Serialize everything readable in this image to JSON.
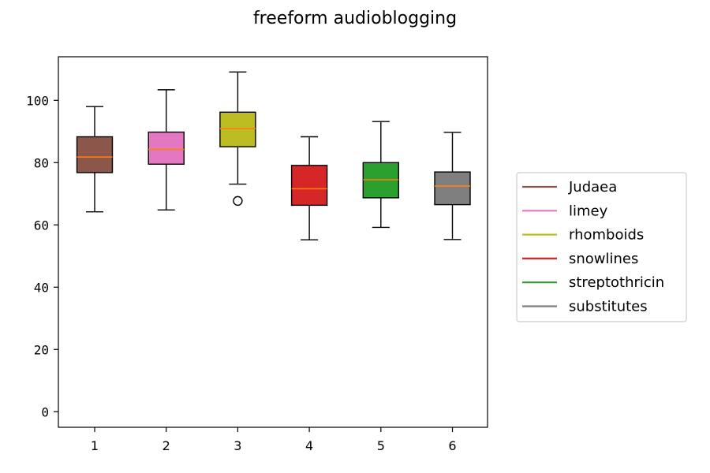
{
  "chart_data": {
    "type": "box",
    "title": "freeform audioblogging",
    "xlabel": "",
    "ylabel": "",
    "ylim": [
      -5,
      114
    ],
    "yticks": [
      0,
      20,
      40,
      60,
      80,
      100
    ],
    "grid": false,
    "legend_position": "right-outside",
    "median_color": "#ff7f0e",
    "series": [
      {
        "name": "Judaea",
        "category": "1",
        "color": "#8c564b",
        "whisker_low": 64.2,
        "q1": 76.8,
        "median": 81.8,
        "q3": 88.3,
        "whisker_high": 98.0,
        "outliers": []
      },
      {
        "name": "limey",
        "category": "2",
        "color": "#e377c2",
        "whisker_low": 64.8,
        "q1": 79.5,
        "median": 84.2,
        "q3": 89.8,
        "whisker_high": 103.4,
        "outliers": []
      },
      {
        "name": "rhomboids",
        "category": "3",
        "color": "#bcbd22",
        "whisker_low": 73.1,
        "q1": 85.1,
        "median": 90.9,
        "q3": 96.2,
        "whisker_high": 109.1,
        "outliers": [
          67.7
        ]
      },
      {
        "name": "snowlines",
        "category": "4",
        "color": "#d62728",
        "whisker_low": 55.2,
        "q1": 66.3,
        "median": 71.6,
        "q3": 79.1,
        "whisker_high": 88.3,
        "outliers": []
      },
      {
        "name": "streptothricin",
        "category": "5",
        "color": "#2ca02c",
        "whisker_low": 59.2,
        "q1": 68.7,
        "median": 74.5,
        "q3": 80.0,
        "whisker_high": 93.2,
        "outliers": []
      },
      {
        "name": "substitutes",
        "category": "6",
        "color": "#7f7f7f",
        "whisker_low": 55.3,
        "q1": 66.5,
        "median": 72.5,
        "q3": 77.0,
        "whisker_high": 89.7,
        "outliers": []
      }
    ]
  }
}
